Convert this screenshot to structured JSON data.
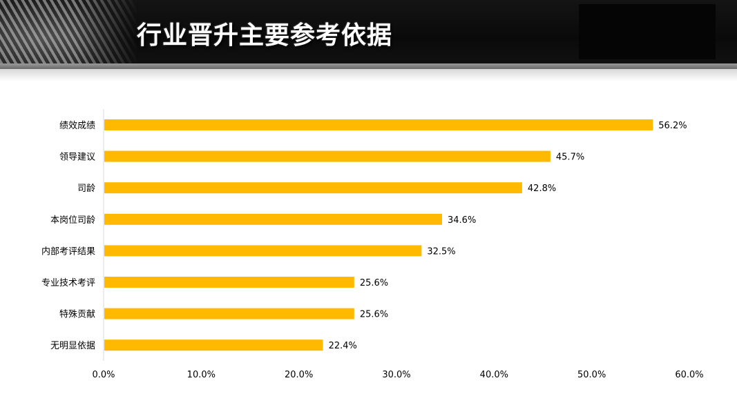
{
  "header": {
    "title": "行业晋升主要参考依据"
  },
  "chart_data": {
    "type": "bar",
    "orientation": "horizontal",
    "title": "",
    "xlabel": "",
    "ylabel": "",
    "categories": [
      "绩效成绩",
      "领导建议",
      "司龄",
      "本岗位司龄",
      "内部考评结果",
      "专业技术考评",
      "特殊贡献",
      "无明显依据"
    ],
    "values": [
      56.2,
      45.7,
      42.8,
      34.6,
      32.5,
      25.6,
      25.6,
      22.4
    ],
    "value_labels": [
      "56.2%",
      "45.7%",
      "42.8%",
      "34.6%",
      "32.5%",
      "25.6%",
      "25.6%",
      "22.4%"
    ],
    "xlim": [
      0,
      60
    ],
    "xticks": [
      0,
      10,
      20,
      30,
      40,
      50,
      60
    ],
    "xtick_labels": [
      "0.0%",
      "10.0%",
      "20.0%",
      "30.0%",
      "40.0%",
      "50.0%",
      "60.0%"
    ],
    "bar_color": "#FFB900",
    "grid": false,
    "legend": false
  }
}
